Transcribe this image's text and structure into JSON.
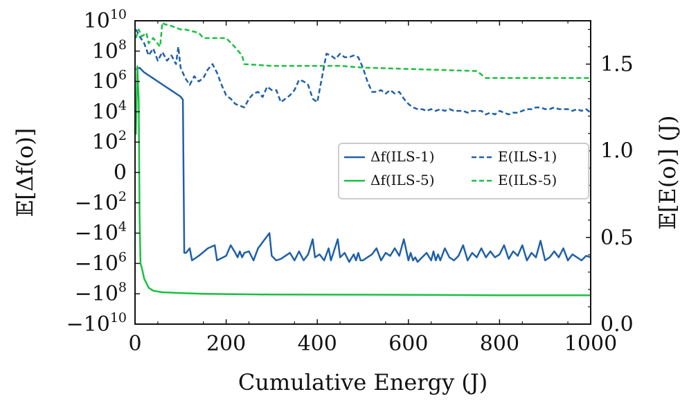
{
  "chart_data": {
    "type": "line",
    "xlabel": "Cumulative Energy (J)",
    "ylabel_left": "𝔼[Δf(o)]",
    "ylabel_right": "𝔼[E(o)] (J)",
    "xlim": [
      0,
      1000
    ],
    "xticks": [
      0,
      200,
      400,
      600,
      800,
      1000
    ],
    "left_axis": {
      "scale": "symlog",
      "ticks": [
        {
          "v": 10,
          "label": "10",
          "sup": "10"
        },
        {
          "v": 8,
          "label": "10",
          "sup": "8"
        },
        {
          "v": 6,
          "label": "10",
          "sup": "6"
        },
        {
          "v": 4,
          "label": "10",
          "sup": "4"
        },
        {
          "v": 2,
          "label": "10",
          "sup": "2"
        },
        {
          "v": 0,
          "label": "0",
          "sup": ""
        },
        {
          "v": -2,
          "label": "−10",
          "sup": "2"
        },
        {
          "v": -4,
          "label": "−10",
          "sup": "4"
        },
        {
          "v": -6,
          "label": "−10",
          "sup": "6"
        },
        {
          "v": -8,
          "label": "−10",
          "sup": "8"
        },
        {
          "v": -10,
          "label": "−10",
          "sup": "10"
        }
      ]
    },
    "right_axis": {
      "ylim": [
        0,
        1.75
      ],
      "ticks": [
        {
          "v": 0.0,
          "label": "0.0"
        },
        {
          "v": 0.5,
          "label": "0.5"
        },
        {
          "v": 1.0,
          "label": "1.0"
        },
        {
          "v": 1.5,
          "label": "1.5"
        }
      ]
    },
    "legend": {
      "placement": "center-right",
      "entries": [
        {
          "label": "Δf(ILS-1)",
          "color": "#1f5fa8",
          "dash": "solid"
        },
        {
          "label": "E(ILS-1)",
          "color": "#1f5fa8",
          "dash": "dashed"
        },
        {
          "label": "Δf(ILS-5)",
          "color": "#18c040",
          "dash": "solid"
        },
        {
          "label": "E(ILS-5)",
          "color": "#18c040",
          "dash": "dashed"
        }
      ]
    },
    "series": [
      {
        "name": "Δf(ILS-1)",
        "axis": "left",
        "color": "#1f5fa8",
        "dash": "solid",
        "note": "left-axis values are signed log10 magnitudes",
        "x": [
          2,
          10,
          20,
          40,
          60,
          80,
          100,
          105,
          108,
          112,
          120,
          125,
          140,
          160,
          175,
          180,
          200,
          210,
          220,
          225,
          230,
          235,
          240,
          250,
          260,
          270,
          280,
          295,
          300,
          310,
          320,
          340,
          350,
          360,
          370,
          380,
          390,
          395,
          405,
          415,
          425,
          430,
          445,
          450,
          460,
          470,
          480,
          485,
          490,
          495,
          500,
          510,
          520,
          530,
          540,
          550,
          560,
          570,
          580,
          590,
          600,
          605,
          610,
          615,
          620,
          630,
          640,
          650,
          655,
          660,
          665,
          670,
          680,
          690,
          700,
          710,
          720,
          730,
          740,
          750,
          760,
          770,
          780,
          790,
          800,
          810,
          820,
          830,
          840,
          850,
          860,
          870,
          880,
          890,
          900,
          910,
          920,
          930,
          940,
          950,
          960,
          970,
          980,
          990,
          1000
        ],
        "y": [
          6.8,
          6.9,
          6.6,
          6.2,
          5.8,
          5.4,
          5.0,
          4.8,
          -5.3,
          -5.3,
          -5.0,
          -5.8,
          -5.5,
          -5.0,
          -4.8,
          -5.8,
          -5.5,
          -4.8,
          -5.3,
          -5.6,
          -5.2,
          -5.6,
          -5.3,
          -5.2,
          -5.8,
          -5.0,
          -4.6,
          -4.0,
          -5.5,
          -5.8,
          -5.7,
          -5.3,
          -5.8,
          -5.2,
          -5.8,
          -5.4,
          -4.4,
          -5.6,
          -5.4,
          -5.8,
          -5.0,
          -5.8,
          -4.4,
          -5.6,
          -5.3,
          -5.9,
          -5.4,
          -5.8,
          -5.3,
          -5.8,
          -5.8,
          -5.6,
          -5.4,
          -5.0,
          -5.8,
          -5.3,
          -5.5,
          -5.0,
          -5.5,
          -4.4,
          -5.8,
          -5.3,
          -5.8,
          -5.6,
          -5.9,
          -5.6,
          -5.3,
          -5.8,
          -5.2,
          -5.8,
          -5.4,
          -5.8,
          -5.0,
          -5.6,
          -5.8,
          -5.5,
          -4.8,
          -5.8,
          -5.3,
          -5.6,
          -5.0,
          -5.6,
          -5.2,
          -5.6,
          -5.4,
          -4.8,
          -5.7,
          -5.2,
          -5.5,
          -4.8,
          -5.8,
          -5.3,
          -5.6,
          -4.5,
          -5.8,
          -5.6,
          -5.2,
          -5.6,
          -5.0,
          -5.8,
          -5.4,
          -5.6,
          -5.8,
          -5.5,
          -5.6
        ]
      },
      {
        "name": "Δf(ILS-5)",
        "axis": "left",
        "color": "#18c040",
        "dash": "solid",
        "note": "left-axis values are signed log10 magnitudes",
        "x": [
          2,
          5,
          8,
          10,
          12,
          15,
          20,
          30,
          40,
          60,
          100,
          150,
          200,
          300,
          500,
          700,
          800,
          1000
        ],
        "y": [
          2.5,
          7.0,
          4.8,
          -3.0,
          -6.0,
          -6.3,
          -7.0,
          -7.6,
          -7.8,
          -7.9,
          -7.95,
          -8.0,
          -8.02,
          -8.05,
          -8.06,
          -8.08,
          -8.1,
          -8.1
        ]
      },
      {
        "name": "E(ILS-1)",
        "axis": "right",
        "color": "#1f5fa8",
        "dash": "dashed",
        "x": [
          2,
          10,
          20,
          30,
          40,
          50,
          60,
          70,
          80,
          90,
          95,
          100,
          110,
          120,
          130,
          140,
          150,
          160,
          170,
          180,
          190,
          200,
          210,
          220,
          230,
          240,
          250,
          260,
          270,
          280,
          290,
          300,
          310,
          320,
          330,
          340,
          350,
          360,
          370,
          380,
          390,
          400,
          410,
          420,
          430,
          440,
          450,
          460,
          470,
          480,
          490,
          500,
          510,
          520,
          530,
          540,
          550,
          560,
          570,
          580,
          590,
          600,
          610,
          620,
          630,
          640,
          650,
          660,
          670,
          680,
          690,
          700,
          710,
          720,
          730,
          740,
          750,
          760,
          770,
          780,
          790,
          800,
          810,
          820,
          830,
          840,
          850,
          860,
          870,
          880,
          890,
          900,
          910,
          920,
          930,
          940,
          950,
          960,
          970,
          980,
          990,
          1000
        ],
        "y": [
          1.7,
          1.66,
          1.62,
          1.55,
          1.59,
          1.52,
          1.57,
          1.52,
          1.55,
          1.5,
          1.6,
          1.48,
          1.42,
          1.38,
          1.43,
          1.4,
          1.42,
          1.47,
          1.5,
          1.45,
          1.38,
          1.32,
          1.3,
          1.27,
          1.26,
          1.25,
          1.3,
          1.33,
          1.34,
          1.31,
          1.37,
          1.35,
          1.35,
          1.28,
          1.3,
          1.32,
          1.35,
          1.41,
          1.4,
          1.38,
          1.3,
          1.28,
          1.42,
          1.56,
          1.55,
          1.53,
          1.56,
          1.54,
          1.54,
          1.55,
          1.54,
          1.48,
          1.4,
          1.34,
          1.34,
          1.35,
          1.33,
          1.35,
          1.33,
          1.34,
          1.3,
          1.27,
          1.25,
          1.24,
          1.24,
          1.23,
          1.24,
          1.23,
          1.24,
          1.23,
          1.24,
          1.23,
          1.23,
          1.23,
          1.22,
          1.23,
          1.23,
          1.23,
          1.21,
          1.22,
          1.21,
          1.23,
          1.22,
          1.21,
          1.22,
          1.22,
          1.23,
          1.24,
          1.24,
          1.25,
          1.25,
          1.24,
          1.24,
          1.25,
          1.24,
          1.24,
          1.24,
          1.23,
          1.24,
          1.23,
          1.24,
          1.22
        ]
      },
      {
        "name": "E(ILS-5)",
        "axis": "right",
        "color": "#18c040",
        "dash": "dashed",
        "x": [
          2,
          8,
          15,
          25,
          30,
          40,
          55,
          60,
          65,
          80,
          100,
          110,
          140,
          150,
          200,
          215,
          225,
          235,
          240,
          300,
          450,
          500,
          750,
          770,
          1000
        ],
        "y": [
          1.65,
          1.7,
          1.66,
          1.68,
          1.62,
          1.65,
          1.6,
          1.74,
          1.73,
          1.72,
          1.7,
          1.7,
          1.68,
          1.65,
          1.65,
          1.61,
          1.58,
          1.55,
          1.5,
          1.49,
          1.49,
          1.48,
          1.46,
          1.42,
          1.42
        ]
      }
    ]
  }
}
